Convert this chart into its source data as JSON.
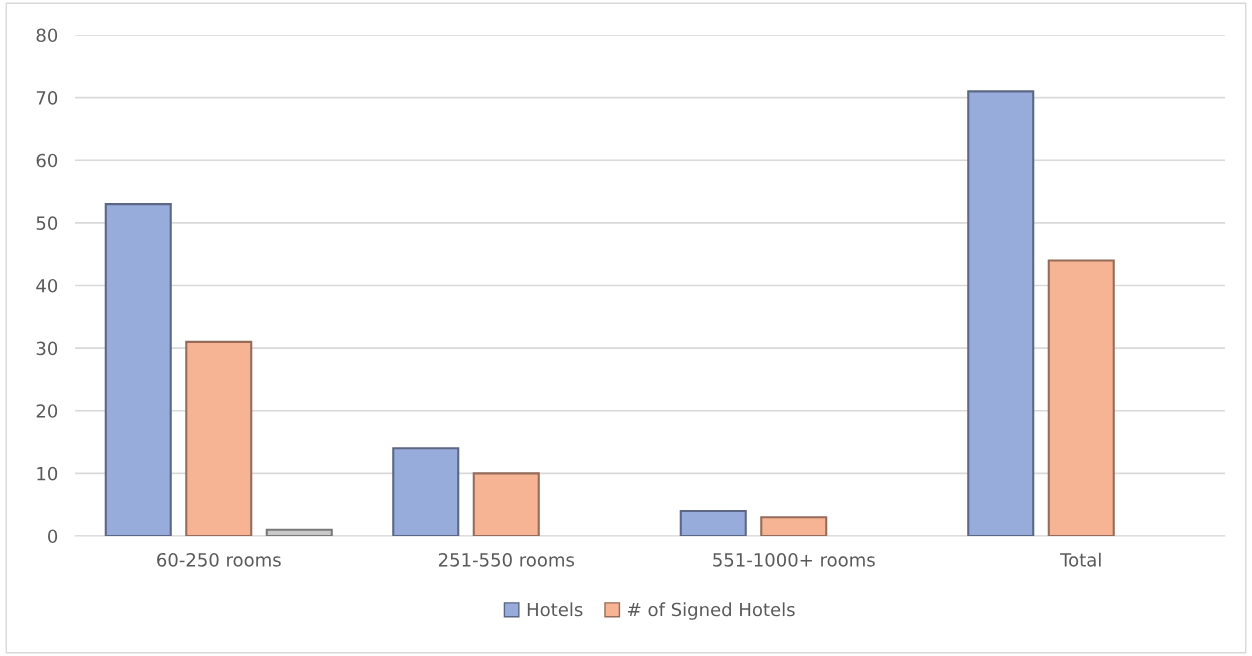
{
  "chart_data": {
    "type": "bar",
    "categories": [
      "60-250 rooms",
      "251-550 rooms",
      "551-1000+ rooms",
      "Total"
    ],
    "series": [
      {
        "name": "Hotels",
        "color": "#98acdc",
        "values": [
          53,
          14,
          4,
          71
        ]
      },
      {
        "name": "# of Signed Hotels",
        "color": "#f6b494",
        "values": [
          31,
          10,
          3,
          44
        ]
      },
      {
        "color": "#c8c8c8",
        "values": [
          1,
          null,
          null,
          null
        ]
      }
    ],
    "ylim": [
      0,
      80
    ],
    "yticks": [
      0,
      10,
      20,
      30,
      40,
      50,
      60,
      70,
      80
    ],
    "grid": "y",
    "legend": "bottom"
  }
}
